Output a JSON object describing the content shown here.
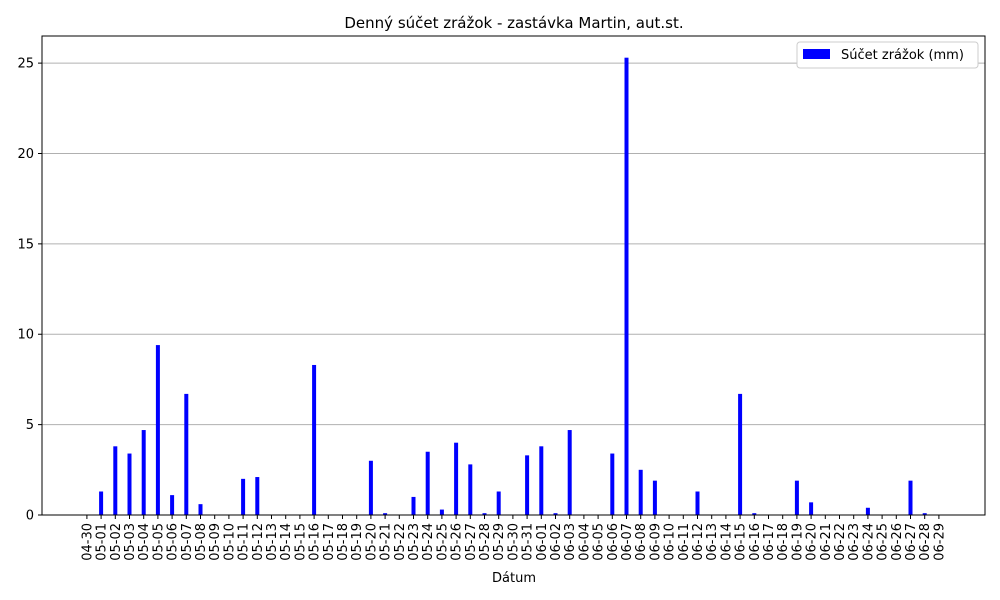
{
  "chart_data": {
    "type": "bar",
    "title": "Denný súčet zrážok - zastávka Martin, aut.st.",
    "xlabel": "Dátum",
    "ylabel": "",
    "ylim": [
      0,
      26.5
    ],
    "yticks": [
      0,
      5,
      10,
      15,
      20,
      25
    ],
    "grid": "horizontal",
    "legend_position": "top-right",
    "colors": {
      "bar": "#0000ff",
      "grid": "#b0b0b0",
      "axis": "#000000"
    },
    "categories": [
      "04-30",
      "05-01",
      "05-02",
      "05-03",
      "05-04",
      "05-05",
      "05-06",
      "05-07",
      "05-08",
      "05-09",
      "05-10",
      "05-11",
      "05-12",
      "05-13",
      "05-14",
      "05-15",
      "05-16",
      "05-17",
      "05-18",
      "05-19",
      "05-20",
      "05-21",
      "05-22",
      "05-23",
      "05-24",
      "05-25",
      "05-26",
      "05-27",
      "05-28",
      "05-29",
      "05-30",
      "05-31",
      "06-01",
      "06-02",
      "06-03",
      "06-04",
      "06-05",
      "06-06",
      "06-07",
      "06-08",
      "06-09",
      "06-10",
      "06-11",
      "06-12",
      "06-13",
      "06-14",
      "06-15",
      "06-16",
      "06-17",
      "06-18",
      "06-19",
      "06-20",
      "06-21",
      "06-22",
      "06-23",
      "06-24",
      "06-25",
      "06-26",
      "06-27",
      "06-28",
      "06-29"
    ],
    "series": [
      {
        "name": "Súčet zrážok (mm)",
        "values": [
          0,
          1.3,
          3.8,
          3.4,
          4.7,
          9.4,
          1.1,
          6.7,
          0.6,
          0,
          0,
          2.0,
          2.1,
          0,
          0,
          0,
          8.3,
          0,
          0,
          0,
          3.0,
          0.1,
          0,
          1.0,
          3.5,
          0.3,
          4.0,
          2.8,
          0.1,
          1.3,
          0,
          3.3,
          3.8,
          0.1,
          4.7,
          0,
          0,
          3.4,
          25.3,
          2.5,
          1.9,
          0,
          0,
          1.3,
          0,
          0,
          6.7,
          0.1,
          0,
          0,
          1.9,
          0.7,
          0,
          0,
          0,
          0.4,
          0,
          0,
          1.9,
          0.1,
          0
        ]
      }
    ]
  }
}
